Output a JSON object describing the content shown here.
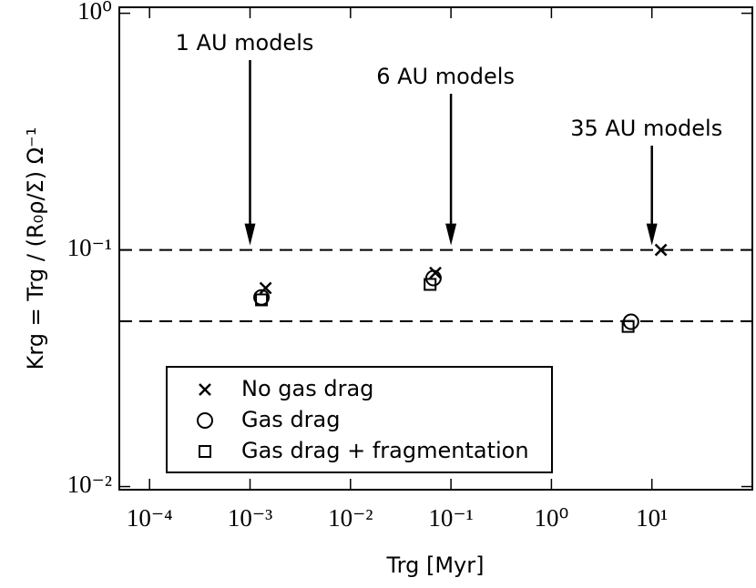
{
  "chart_data": {
    "type": "scatter",
    "xlabel": "Trg [Myr]",
    "ylabel": "Krg = Trg / (R₀ρ/Σ) Ω⁻¹",
    "xscale": "log",
    "yscale": "log",
    "xlim": [
      5e-05,
      100
    ],
    "ylim": [
      0.0097,
      1.06
    ],
    "xticks": [
      {
        "value": 0.0001,
        "label": "10⁻⁴"
      },
      {
        "value": 0.001,
        "label": "10⁻³"
      },
      {
        "value": 0.01,
        "label": "10⁻²"
      },
      {
        "value": 0.1,
        "label": "10⁻¹"
      },
      {
        "value": 1,
        "label": "10⁰"
      },
      {
        "value": 10,
        "label": "10¹"
      }
    ],
    "yticks": [
      {
        "value": 0.01,
        "label": "10⁻²"
      },
      {
        "value": 0.1,
        "label": "10⁻¹"
      },
      {
        "value": 1,
        "label": "10⁰"
      }
    ],
    "hlines": [
      0.1,
      0.05
    ],
    "legend": "lower left",
    "series": [
      {
        "name": "No gas drag",
        "color": "#000000",
        "marker": "x",
        "x": [
          0.00143,
          0.07,
          12.3
        ],
        "values": [
          0.069,
          0.08,
          0.1
        ]
      },
      {
        "name": "Gas drag",
        "color": "#000000",
        "marker": "o",
        "x": [
          0.0013,
          0.067,
          6.2
        ],
        "values": [
          0.063,
          0.076,
          0.0497
        ]
      },
      {
        "name": "Gas drag + fragmentation",
        "color": "#000000",
        "marker": "s",
        "x": [
          0.0013,
          0.062,
          5.8
        ],
        "values": [
          0.0615,
          0.0715,
          0.0475
        ]
      }
    ],
    "annotations": [
      {
        "text": "1 AU models",
        "x": 0.001,
        "y": 0.1
      },
      {
        "text": "6 AU models",
        "x": 0.1,
        "y": 0.1
      },
      {
        "text": "35 AU models",
        "x": 10,
        "y": 0.1
      }
    ]
  }
}
